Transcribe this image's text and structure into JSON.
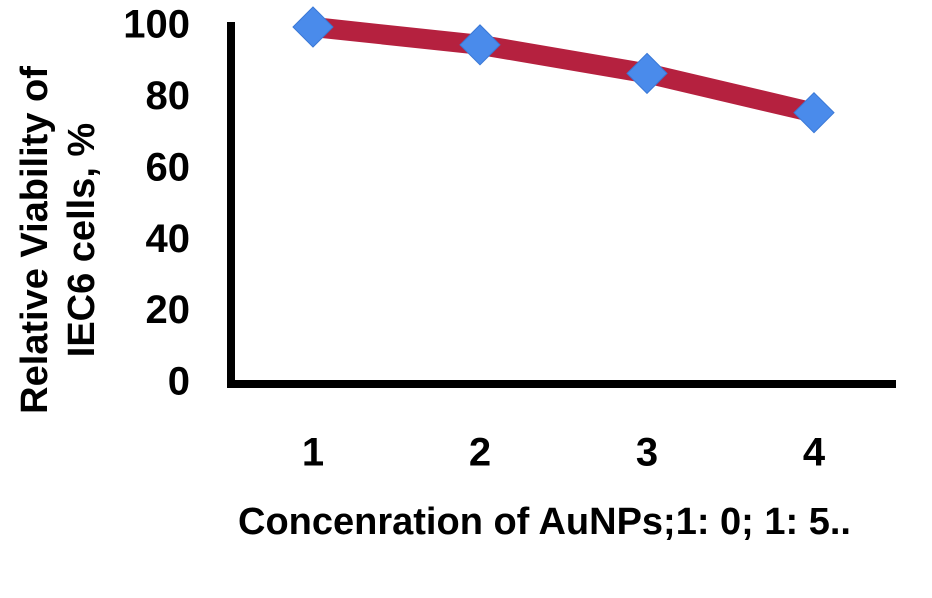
{
  "chart_data": {
    "type": "line",
    "categories": [
      "1",
      "2",
      "3",
      "4"
    ],
    "series": [
      {
        "values": [
          100,
          95,
          87,
          76
        ],
        "line_color": "#B5213F",
        "marker_color": "#4A8BEB",
        "marker": "diamond"
      }
    ],
    "title": "",
    "xlabel": "Concenration of AuNPs;1: 0; 1: 5..",
    "ylabel_lines": [
      "Relative Viability of",
      "IEC6 cells, %"
    ],
    "ylim": [
      0,
      100
    ],
    "yticks": [
      "0",
      "20",
      "40",
      "60",
      "80",
      "100"
    ],
    "grid": false,
    "legend": "none"
  }
}
